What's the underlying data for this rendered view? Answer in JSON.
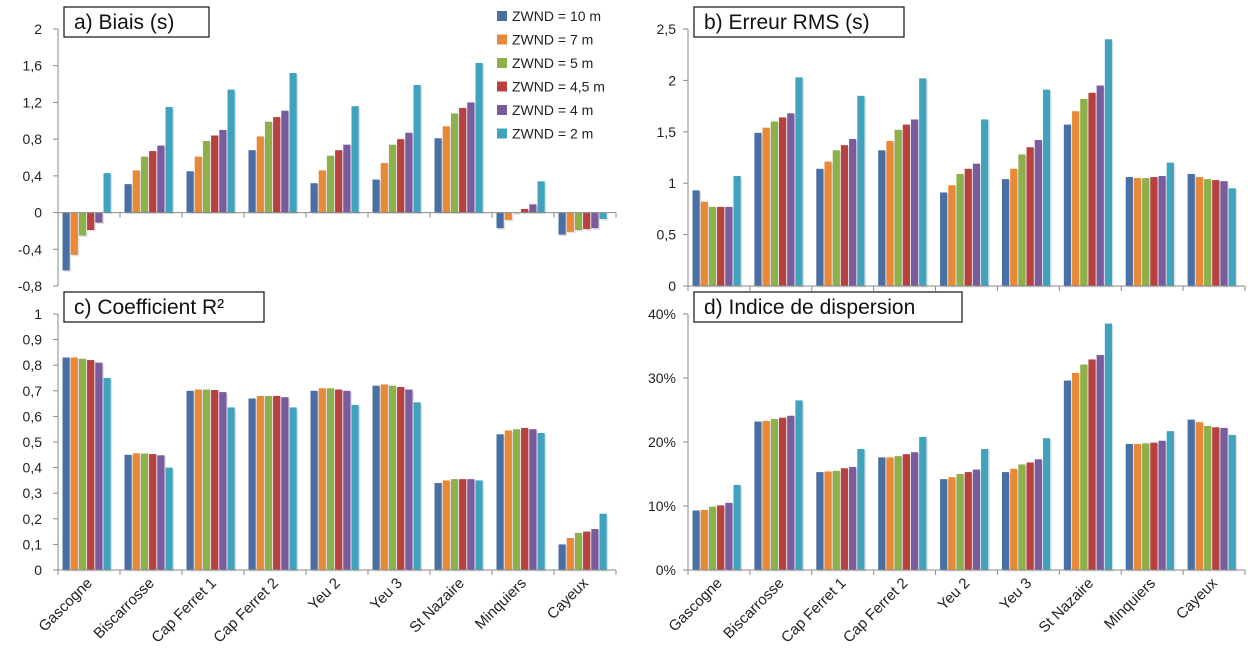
{
  "colors": {
    "series": [
      "#4a6fa5",
      "#e8893a",
      "#8db04a",
      "#b8403f",
      "#7a5b9e",
      "#3fa3bd"
    ],
    "axis": "#8a8a8a",
    "background": "#ffffff"
  },
  "legend": {
    "placement": "top-right of panel a",
    "items": [
      "ZWND = 10 m",
      "ZWND = 7 m",
      "ZWND = 5 m",
      "ZWND = 4,5 m",
      "ZWND = 4 m",
      "ZWND = 2 m"
    ]
  },
  "chart_data": [
    {
      "type": "bar",
      "title": "a) Biais (s)",
      "categories": [
        "Gascogne",
        "Biscarrosse",
        "Cap Ferret 1",
        "Cap Ferret 2",
        "Yeu 2",
        "Yeu 3",
        "St Nazaire",
        "Minquiers",
        "Cayeux"
      ],
      "ylim": [
        -0.8,
        2
      ],
      "yticks": [
        "2",
        "1,6",
        "1,2",
        "0,8",
        "0,4",
        "0",
        "-0,4",
        "-0,8"
      ],
      "ytick_values": [
        2,
        1.6,
        1.2,
        0.8,
        0.4,
        0,
        -0.4,
        -0.8
      ],
      "series": [
        {
          "name": "ZWND = 10 m",
          "values": [
            -0.63,
            0.31,
            0.45,
            0.68,
            0.32,
            0.36,
            0.81,
            -0.17,
            -0.24
          ]
        },
        {
          "name": "ZWND = 7 m",
          "values": [
            -0.46,
            0.46,
            0.61,
            0.83,
            0.46,
            0.54,
            0.94,
            -0.08,
            -0.21
          ]
        },
        {
          "name": "ZWND = 5 m",
          "values": [
            -0.25,
            0.61,
            0.78,
            0.99,
            0.62,
            0.74,
            1.08,
            0.0,
            -0.19
          ]
        },
        {
          "name": "ZWND = 4,5 m",
          "values": [
            -0.19,
            0.67,
            0.84,
            1.04,
            0.68,
            0.8,
            1.14,
            0.04,
            -0.18
          ]
        },
        {
          "name": "ZWND = 4 m",
          "values": [
            -0.11,
            0.73,
            0.9,
            1.11,
            0.74,
            0.87,
            1.2,
            0.09,
            -0.17
          ]
        },
        {
          "name": "ZWND = 2 m",
          "values": [
            0.43,
            1.15,
            1.34,
            1.52,
            1.16,
            1.39,
            1.63,
            0.34,
            -0.07
          ]
        }
      ],
      "show_category_labels": false,
      "grid": false
    },
    {
      "type": "bar",
      "title": "b) Erreur RMS (s)",
      "categories": [
        "Gascogne",
        "Biscarrosse",
        "Cap Ferret 1",
        "Cap Ferret 2",
        "Yeu 2",
        "Yeu 3",
        "St Nazaire",
        "Minquiers",
        "Cayeux"
      ],
      "ylim": [
        0,
        2.5
      ],
      "yticks": [
        "2,5",
        "2",
        "1,5",
        "1",
        "0,5",
        "0"
      ],
      "ytick_values": [
        2.5,
        2,
        1.5,
        1,
        0.5,
        0
      ],
      "series": [
        {
          "name": "ZWND = 10 m",
          "values": [
            0.93,
            1.49,
            1.14,
            1.32,
            0.91,
            1.04,
            1.57,
            1.06,
            1.09
          ]
        },
        {
          "name": "ZWND = 7 m",
          "values": [
            0.82,
            1.54,
            1.21,
            1.41,
            0.98,
            1.14,
            1.7,
            1.05,
            1.06
          ]
        },
        {
          "name": "ZWND = 5 m",
          "values": [
            0.77,
            1.6,
            1.32,
            1.52,
            1.09,
            1.28,
            1.82,
            1.05,
            1.04
          ]
        },
        {
          "name": "ZWND = 4,5 m",
          "values": [
            0.77,
            1.64,
            1.37,
            1.57,
            1.14,
            1.35,
            1.88,
            1.06,
            1.03
          ]
        },
        {
          "name": "ZWND = 4 m",
          "values": [
            0.77,
            1.68,
            1.43,
            1.62,
            1.19,
            1.42,
            1.95,
            1.07,
            1.02
          ]
        },
        {
          "name": "ZWND = 2 m",
          "values": [
            1.07,
            2.03,
            1.85,
            2.02,
            1.62,
            1.91,
            2.4,
            1.2,
            0.95
          ]
        }
      ],
      "show_category_labels": false,
      "grid": false
    },
    {
      "type": "bar",
      "title": "c) Coefficient R²",
      "categories": [
        "Gascogne",
        "Biscarrosse",
        "Cap Ferret 1",
        "Cap Ferret 2",
        "Yeu 2",
        "Yeu 3",
        "St Nazaire",
        "Minquiers",
        "Cayeux"
      ],
      "ylim": [
        0,
        1
      ],
      "yticks": [
        "1",
        "0,9",
        "0,8",
        "0,7",
        "0,6",
        "0,5",
        "0,4",
        "0,3",
        "0,2",
        "0,1",
        "0"
      ],
      "ytick_values": [
        1,
        0.9,
        0.8,
        0.7,
        0.6,
        0.5,
        0.4,
        0.3,
        0.2,
        0.1,
        0
      ],
      "series": [
        {
          "name": "ZWND = 10 m",
          "values": [
            0.83,
            0.45,
            0.7,
            0.67,
            0.7,
            0.72,
            0.34,
            0.53,
            0.1
          ]
        },
        {
          "name": "ZWND = 7 m",
          "values": [
            0.83,
            0.456,
            0.705,
            0.68,
            0.71,
            0.725,
            0.35,
            0.545,
            0.125
          ]
        },
        {
          "name": "ZWND = 5 m",
          "values": [
            0.825,
            0.455,
            0.705,
            0.68,
            0.71,
            0.72,
            0.355,
            0.55,
            0.145
          ]
        },
        {
          "name": "ZWND = 4,5 m",
          "values": [
            0.82,
            0.453,
            0.703,
            0.68,
            0.705,
            0.715,
            0.355,
            0.555,
            0.15
          ]
        },
        {
          "name": "ZWND = 4 m",
          "values": [
            0.81,
            0.448,
            0.695,
            0.675,
            0.7,
            0.705,
            0.355,
            0.55,
            0.16
          ]
        },
        {
          "name": "ZWND = 2 m",
          "values": [
            0.75,
            0.4,
            0.635,
            0.635,
            0.645,
            0.655,
            0.35,
            0.535,
            0.22
          ]
        }
      ],
      "show_category_labels": true,
      "grid": false
    },
    {
      "type": "bar",
      "title": "d) Indice de dispersion",
      "categories": [
        "Gascogne",
        "Biscarrosse",
        "Cap Ferret 1",
        "Cap Ferret 2",
        "Yeu 2",
        "Yeu 3",
        "St Nazaire",
        "Minquiers",
        "Cayeux"
      ],
      "ylim": [
        0,
        40
      ],
      "yticks": [
        "40%",
        "30%",
        "20%",
        "10%",
        "0%"
      ],
      "ytick_values": [
        40,
        30,
        20,
        10,
        0
      ],
      "series": [
        {
          "name": "ZWND = 10 m",
          "values": [
            9.3,
            23.2,
            15.3,
            17.6,
            14.2,
            15.3,
            29.6,
            19.7,
            23.5
          ]
        },
        {
          "name": "ZWND = 7 m",
          "values": [
            9.4,
            23.3,
            15.4,
            17.6,
            14.5,
            15.8,
            30.8,
            19.7,
            23.1
          ]
        },
        {
          "name": "ZWND = 5 m",
          "values": [
            9.9,
            23.6,
            15.5,
            17.8,
            15.0,
            16.5,
            32.1,
            19.8,
            22.5
          ]
        },
        {
          "name": "ZWND = 4,5 m",
          "values": [
            10.1,
            23.8,
            15.9,
            18.1,
            15.3,
            16.8,
            32.9,
            19.9,
            22.3
          ]
        },
        {
          "name": "ZWND = 4 m",
          "values": [
            10.5,
            24.1,
            16.1,
            18.4,
            15.7,
            17.3,
            33.6,
            20.2,
            22.2
          ]
        },
        {
          "name": "ZWND = 2 m",
          "values": [
            13.3,
            26.5,
            18.9,
            20.8,
            18.9,
            20.6,
            38.5,
            21.7,
            21.1
          ]
        }
      ],
      "show_category_labels": true,
      "grid": false
    }
  ]
}
